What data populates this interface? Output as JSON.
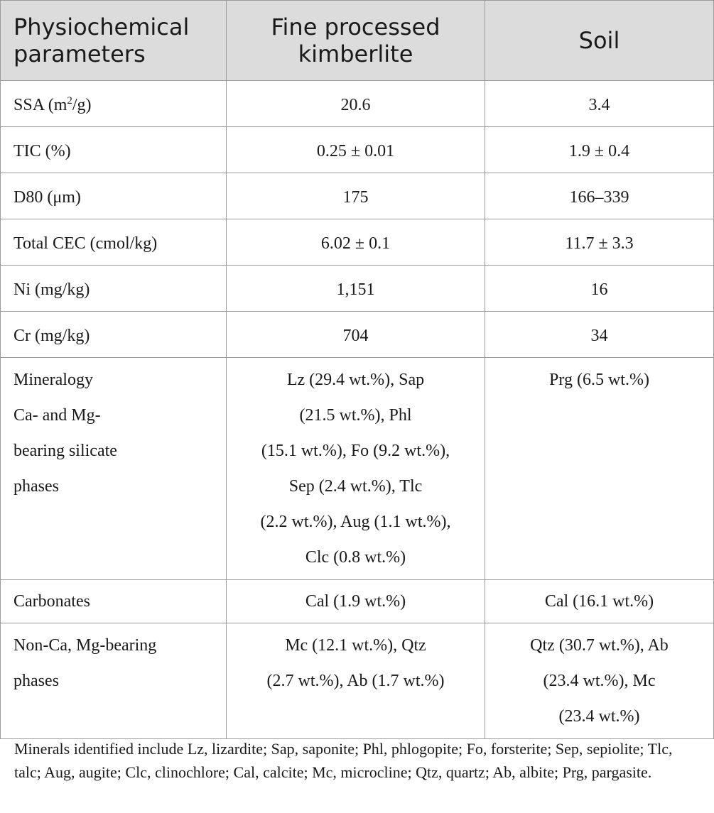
{
  "table": {
    "headers": {
      "col1": [
        "Physiochemical",
        "parameters"
      ],
      "col2": [
        "Fine processed",
        "kimberlite"
      ],
      "col3": "Soil"
    },
    "rows": [
      {
        "param_prefix": "SSA (m",
        "param_sup": "2",
        "param_suffix": "/g)",
        "kimberlite": "20.6",
        "soil": "3.4"
      },
      {
        "param": "TIC (%)",
        "kimberlite": "0.25 ± 0.01",
        "soil": "1.9 ± 0.4"
      },
      {
        "param": "D80 (μm)",
        "kimberlite": "175",
        "soil": "166–339"
      },
      {
        "param": "Total CEC (cmol/kg)",
        "kimberlite": "6.02 ± 0.1",
        "soil": "11.7 ± 3.3"
      },
      {
        "param": "Ni (mg/kg)",
        "kimberlite": "1,151",
        "soil": "16"
      },
      {
        "param": "Cr (mg/kg)",
        "kimberlite": "704",
        "soil": "34"
      }
    ],
    "mineralogy": {
      "param_lines": [
        "Mineralogy",
        "Ca- and Mg-",
        "bearing silicate",
        "phases"
      ],
      "kimberlite_lines": [
        "Lz (29.4 wt.%), Sap",
        "(21.5 wt.%), Phl",
        "(15.1 wt.%), Fo (9.2 wt.%),",
        "Sep (2.4 wt.%), Tlc",
        "(2.2 wt.%), Aug (1.1 wt.%),",
        "Clc (0.8 wt.%)"
      ],
      "soil_lines": [
        "Prg (6.5 wt.%)"
      ]
    },
    "carbonates": {
      "param": "Carbonates",
      "kimberlite": "Cal (1.9 wt.%)",
      "soil": "Cal (16.1 wt.%)"
    },
    "non_ca": {
      "param_lines": [
        "Non-Ca, Mg-bearing",
        "phases"
      ],
      "kimberlite_lines": [
        "Mc (12.1 wt.%), Qtz",
        "(2.7 wt.%), Ab (1.7 wt.%)"
      ],
      "soil_lines": [
        "Qtz (30.7 wt.%), Ab",
        "(23.4 wt.%), Mc",
        "(23.4 wt.%)"
      ]
    }
  },
  "footnote": "Minerals identified include Lz, lizardite; Sap, saponite; Phl, phlogopite; Fo, forsterite; Sep, sepiolite; Tlc, talc; Aug, augite; Clc, clinochlore; Cal, calcite; Mc, microcline; Qtz, quartz; Ab, albite; Prg, pargasite."
}
